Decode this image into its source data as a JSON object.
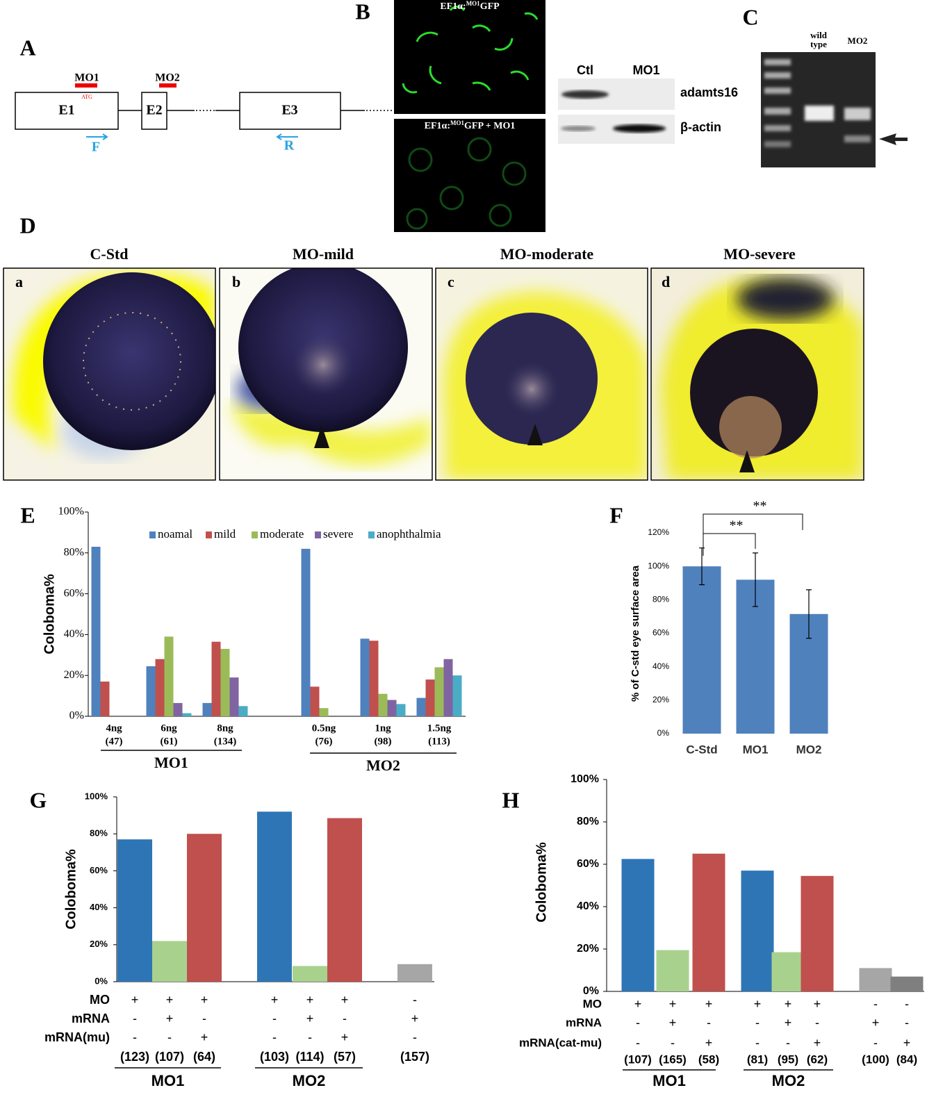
{
  "panels": {
    "A": {
      "label": "A",
      "mo1": "MO1",
      "atg": "ATG",
      "mo2": "MO2",
      "exons": [
        "E1",
        "E2",
        "E3"
      ],
      "forward": "F",
      "reverse": "R"
    },
    "B": {
      "label": "B",
      "construct_prefix": "EF1α:",
      "construct_sup": "MO1",
      "construct_suffix": "GFP",
      "construct_suffix_mo": "GFP + MO1",
      "lanes": [
        "Ctl",
        "MO1"
      ],
      "proteins": [
        "adamts16",
        "β-actin"
      ]
    },
    "C": {
      "label": "C",
      "wild_type_lines": [
        "wild",
        "type"
      ],
      "mo2": "MO2"
    },
    "D": {
      "label": "D",
      "titles": [
        "C-Std",
        "MO-mild",
        "MO-moderate",
        "MO-severe"
      ],
      "letters": [
        "a",
        "b",
        "c",
        "d"
      ]
    }
  },
  "chart_data": [
    {
      "type": "bar",
      "panel": "E",
      "ylabel": "Coloboma%",
      "categories": [
        "4ng",
        "6ng",
        "8ng",
        "0.5ng",
        "1ng",
        "1.5ng"
      ],
      "sample_sizes": [
        "(47)",
        "(61)",
        "(134)",
        "(76)",
        "(98)",
        "(113)"
      ],
      "groups": [
        "MO1",
        "MO2"
      ],
      "series": [
        {
          "name": "noamal",
          "color": "#4f81bd",
          "values": [
            83,
            24.5,
            6.5,
            82,
            38,
            9
          ]
        },
        {
          "name": "mild",
          "color": "#c0504d",
          "values": [
            17,
            28,
            36.5,
            14.5,
            37,
            18
          ]
        },
        {
          "name": "moderate",
          "color": "#9bbb59",
          "values": [
            0,
            39,
            33,
            4,
            11,
            24
          ]
        },
        {
          "name": "severe",
          "color": "#8064a2",
          "values": [
            0,
            6.5,
            19,
            0,
            8,
            28
          ]
        },
        {
          "name": "anophthalmia",
          "color": "#4bacc6",
          "values": [
            0,
            1.5,
            5,
            0,
            6,
            20
          ]
        }
      ],
      "ylim": [
        0,
        100
      ],
      "yticks": [
        {
          "value": 0,
          "label": "0%"
        },
        {
          "value": 20,
          "label": "20%"
        },
        {
          "value": 40,
          "label": "40%"
        },
        {
          "value": 60,
          "label": "60%"
        },
        {
          "value": 80,
          "label": "80%"
        },
        {
          "value": 100,
          "label": "100%"
        }
      ],
      "legend": "top"
    },
    {
      "type": "bar",
      "panel": "F",
      "ylabel": "% of C-std eye surface area",
      "categories": [
        "C-Std",
        "MO1",
        "MO2"
      ],
      "values": [
        100,
        92,
        71.5
      ],
      "errors": [
        11,
        16,
        14.5
      ],
      "color": "#4f81bd",
      "annotations": [
        "**",
        "**"
      ],
      "ylim": [
        0,
        120
      ],
      "yticks": [
        {
          "value": 0,
          "label": "0%"
        },
        {
          "value": 20,
          "label": "20%"
        },
        {
          "value": 40,
          "label": "40%"
        },
        {
          "value": 60,
          "label": "60%"
        },
        {
          "value": 80,
          "label": "80%"
        },
        {
          "value": 100,
          "label": "100%"
        },
        {
          "value": 120,
          "label": "120%"
        }
      ]
    },
    {
      "type": "bar",
      "panel": "G",
      "ylabel": "Coloboma%",
      "values": [
        77,
        22,
        80,
        92,
        8.5,
        88.5,
        9.5
      ],
      "colors": [
        "#2e75b6",
        "#a9d18e",
        "#c0504d",
        "#2e75b6",
        "#a9d18e",
        "#c0504d",
        "#a6a6a6"
      ],
      "conditions": [
        {
          "label": "MO",
          "marks": [
            "+",
            "+",
            "+",
            "+",
            "+",
            "+",
            "-"
          ]
        },
        {
          "label": "mRNA",
          "marks": [
            "-",
            "+",
            "-",
            "-",
            "+",
            "-",
            "+"
          ]
        },
        {
          "label": "mRNA(mu)",
          "marks": [
            "-",
            "-",
            "+",
            "-",
            "-",
            "+",
            "-"
          ]
        }
      ],
      "sample_sizes": [
        "(123)",
        "(107)",
        "(64)",
        "(103)",
        "(114)",
        "(57)",
        "(157)"
      ],
      "groups": [
        "MO1",
        "MO2"
      ],
      "ylim": [
        0,
        100
      ],
      "yticks": [
        {
          "value": 0,
          "label": "0%"
        },
        {
          "value": 20,
          "label": "20%"
        },
        {
          "value": 40,
          "label": "40%"
        },
        {
          "value": 60,
          "label": "60%"
        },
        {
          "value": 80,
          "label": "80%"
        },
        {
          "value": 100,
          "label": "100%"
        }
      ]
    },
    {
      "type": "bar",
      "panel": "H",
      "ylabel": "Coloboma%",
      "values": [
        62.5,
        19.5,
        65,
        57,
        18.5,
        54.5,
        11,
        7
      ],
      "colors": [
        "#2e75b6",
        "#a9d18e",
        "#c0504d",
        "#2e75b6",
        "#a9d18e",
        "#c0504d",
        "#a6a6a6",
        "#7f7f7f"
      ],
      "conditions": [
        {
          "label": "MO",
          "marks": [
            "+",
            "+",
            "+",
            "+",
            "+",
            "+",
            "-",
            "-"
          ]
        },
        {
          "label": "mRNA",
          "marks": [
            "-",
            "+",
            "-",
            "-",
            "+",
            "-",
            "+",
            "-"
          ]
        },
        {
          "label": "mRNA(cat-mu)",
          "marks": [
            "-",
            "-",
            "+",
            "-",
            "-",
            "+",
            "-",
            "+"
          ]
        }
      ],
      "sample_sizes": [
        "(107)",
        "(165)",
        "(58)",
        "(81)",
        "(95)",
        "(62)",
        "(100)",
        "(84)"
      ],
      "groups": [
        "MO1",
        "MO2"
      ],
      "ylim": [
        0,
        100
      ],
      "yticks": [
        {
          "value": 0,
          "label": "0%"
        },
        {
          "value": 20,
          "label": "20%"
        },
        {
          "value": 40,
          "label": "40%"
        },
        {
          "value": 60,
          "label": "60%"
        },
        {
          "value": 80,
          "label": "80%"
        },
        {
          "value": 100,
          "label": "100%"
        }
      ]
    }
  ]
}
